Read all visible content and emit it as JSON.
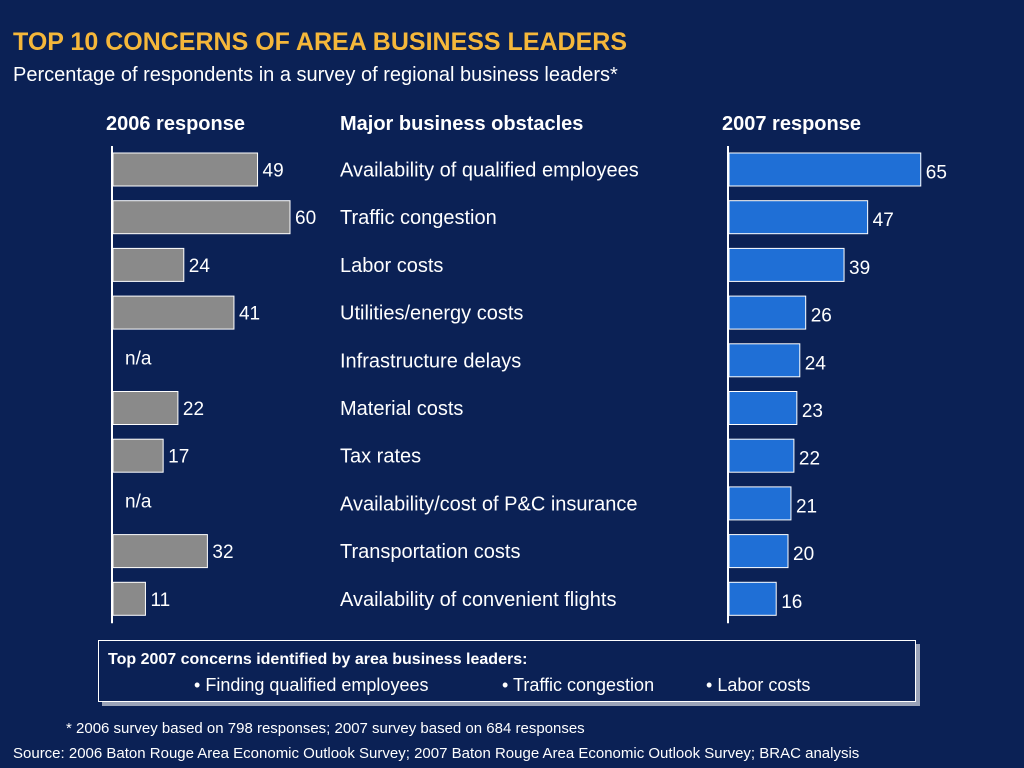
{
  "header": {
    "title": "TOP 10 CONCERNS OF AREA BUSINESS LEADERS",
    "subtitle": "Percentage of respondents in a survey of regional business leaders*"
  },
  "columns": {
    "left": "2006 response",
    "middle": "Major business obstacles",
    "right": "2007 response"
  },
  "colors": {
    "background": "#0b2155",
    "title": "#f5b73a",
    "bar_2006": "#8a8a8a",
    "bar_2007": "#1f6fd6"
  },
  "chart_data": {
    "type": "bar",
    "orientation": "horizontal",
    "categories": [
      "Availability of qualified employees",
      "Traffic congestion",
      "Labor costs",
      "Utilities/energy costs",
      "Infrastructure delays",
      "Material costs",
      "Tax rates",
      "Availability/cost of P&C insurance",
      "Transportation costs",
      "Availability of convenient flights"
    ],
    "series": [
      {
        "name": "2006 response",
        "values": [
          49,
          60,
          24,
          41,
          null,
          22,
          17,
          null,
          32,
          11
        ],
        "labels": [
          "49",
          "60",
          "24",
          "41",
          "n/a",
          "22",
          "17",
          "n/a",
          "32",
          "11"
        ]
      },
      {
        "name": "2007 response",
        "values": [
          65,
          47,
          39,
          26,
          24,
          23,
          22,
          21,
          20,
          16
        ],
        "labels": [
          "65",
          "47",
          "39",
          "26",
          "24",
          "23",
          "22",
          "21",
          "20",
          "16"
        ]
      }
    ]
  },
  "callout": {
    "title": "Top 2007 concerns identified by area business leaders:",
    "items": [
      "Finding qualified employees",
      "Traffic congestion",
      "Labor costs"
    ],
    "bullet": "•"
  },
  "footnote": "* 2006 survey based on 798 responses; 2007 survey based on 684 responses",
  "source": "Source: 2006 Baton Rouge Area Economic Outlook Survey; 2007 Baton Rouge Area Economic Outlook Survey; BRAC analysis"
}
